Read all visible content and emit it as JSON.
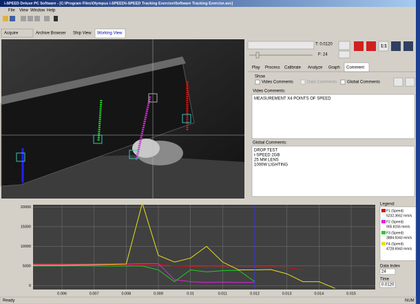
{
  "window": {
    "title": "i-SPEED Deluxe PC Software - [C:\\Program Files\\Olympus i-SPEED\\i-SPEED Tracking Exercise\\Software Tracking Exercise.avc]",
    "menu": [
      "File",
      "View",
      "Window",
      "Help"
    ],
    "tabs": [
      "Acquire",
      "Archive Browser",
      "Ship View",
      "Working View"
    ],
    "status": "Ready",
    "status_right": "NUM"
  },
  "controls": {
    "time": "T: 0.0120",
    "frame": "F: 24",
    "zoom": "1:1",
    "tabs": [
      "Play",
      "Process",
      "Calibrate",
      "Analyze",
      "Graph",
      "Comment"
    ],
    "show_label": "Show",
    "checkboxes": [
      "Video Comments",
      "Data Comments",
      "Global Comments"
    ],
    "video_comments_label": "Video Comments:",
    "video_comments": "MEASUREMENT X4 POINTS OF SPEED",
    "global_comments_label": "Global Comments:",
    "global_comments": [
      "DROP TEST",
      "i-SPEED 2GB",
      "25 MM LENS",
      "1000W LIGHTING"
    ]
  },
  "chart_data": {
    "type": "line",
    "grid": true,
    "cursor_x": 0.012,
    "x": [
      0.0051,
      0.006,
      0.007,
      0.008,
      0.0085,
      0.009,
      0.0095,
      0.01,
      0.0105,
      0.011,
      0.0115,
      0.012,
      0.0125,
      0.013,
      0.0135,
      0.014,
      0.0145,
      0.015
    ],
    "xlim": [
      0.0051,
      0.01575
    ],
    "xticks": [
      0.006,
      0.007,
      0.008,
      0.009,
      0.01,
      0.011,
      0.012,
      0.013,
      0.014,
      0.015
    ],
    "ylim": [
      -1000,
      20600
    ],
    "yticks": [
      0,
      5000,
      10000,
      15000,
      20000
    ],
    "legend_title": "Legend:",
    "series": [
      {
        "name": "F1 (Speed)",
        "color": "#d01010",
        "values": [
          5300,
          5300,
          5300,
          5300,
          5400,
          5500,
          5000,
          4900,
          4700,
          4800,
          4600,
          4700,
          4800,
          4600,
          4000,
          null,
          null,
          null
        ]
      },
      {
        "name": "F2 (Speed)",
        "color": "#e020e0",
        "values": [
          5500,
          5500,
          5500,
          5500,
          5600,
          5600,
          1500,
          1000,
          800,
          900,
          800,
          800,
          null,
          null,
          null,
          null,
          null,
          null
        ]
      },
      {
        "name": "F3 (Speed)",
        "color": "#20d020",
        "values": [
          5000,
          5000,
          5000,
          5000,
          5000,
          4000,
          1000,
          4000,
          3500,
          3800,
          3900,
          1000,
          null,
          null,
          null,
          null,
          null,
          null
        ]
      },
      {
        "name": "F4 (Speed)",
        "color": "#e8e020",
        "values": [
          5200,
          5200,
          5300,
          5500,
          21000,
          7700,
          6000,
          7000,
          10000,
          6000,
          4000,
          4000,
          4100,
          3000,
          1000,
          1000,
          -700,
          null
        ]
      }
    ]
  },
  "data_panel": {
    "legend_values": [
      "5232.3662 mm/s",
      "905.8156 mm/s",
      "3884.9343 mm/s",
      "4728.6943 mm/s"
    ],
    "data_index_label": "Data Index",
    "data_index": "24",
    "time_label": "Time",
    "time": "0.0120"
  }
}
